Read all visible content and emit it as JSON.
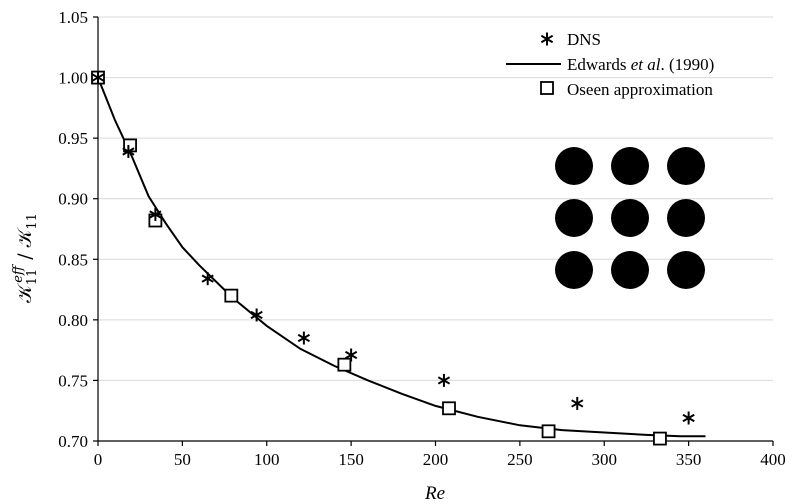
{
  "chart_data": {
    "type": "scatter",
    "xlabel": "Re",
    "ylabel_parts": {
      "k1": "𝒦",
      "sub1": "11",
      "sup1": "eff",
      "slash": " / ",
      "k2": "𝒦",
      "sub2": "11"
    },
    "xlim": [
      0,
      400
    ],
    "ylim": [
      0.7,
      1.05
    ],
    "x_ticks": [
      "0",
      "50",
      "100",
      "150",
      "200",
      "250",
      "300",
      "350",
      "400"
    ],
    "y_ticks": [
      "0.70",
      "0.75",
      "0.80",
      "0.85",
      "0.90",
      "0.95",
      "1.00",
      "1.05"
    ],
    "grid": "horizontal",
    "legend_position": "top-right",
    "legend": {
      "dns": "DNS",
      "edwards_pre": "Edwards ",
      "edwards_italic": "et al",
      "edwards_post": ". (1990)",
      "oseen": "Oseen approximation"
    },
    "series": [
      {
        "name": "DNS",
        "marker": "asterisk",
        "x": [
          0,
          18,
          34,
          65,
          94,
          122,
          150,
          205,
          284,
          350
        ],
        "y": [
          1.0,
          0.939,
          0.887,
          0.834,
          0.804,
          0.785,
          0.771,
          0.75,
          0.731,
          0.719
        ]
      },
      {
        "name": "Edwards et al. (1990)",
        "marker": "line",
        "x": [
          0,
          10,
          20,
          30,
          40,
          50,
          60,
          80,
          100,
          120,
          140,
          160,
          180,
          200,
          225,
          250,
          275,
          300,
          325,
          345,
          360
        ],
        "y": [
          1.0,
          0.965,
          0.935,
          0.902,
          0.88,
          0.86,
          0.845,
          0.818,
          0.795,
          0.776,
          0.762,
          0.75,
          0.739,
          0.729,
          0.72,
          0.713,
          0.709,
          0.707,
          0.705,
          0.704,
          0.704
        ]
      },
      {
        "name": "Oseen approximation",
        "marker": "square",
        "x": [
          0,
          19,
          34,
          79,
          146,
          208,
          267,
          333
        ],
        "y": [
          1.0,
          0.944,
          0.882,
          0.82,
          0.763,
          0.727,
          0.708,
          0.702
        ]
      }
    ],
    "inset": {
      "description_rows": 3,
      "description_cols": 3
    }
  }
}
